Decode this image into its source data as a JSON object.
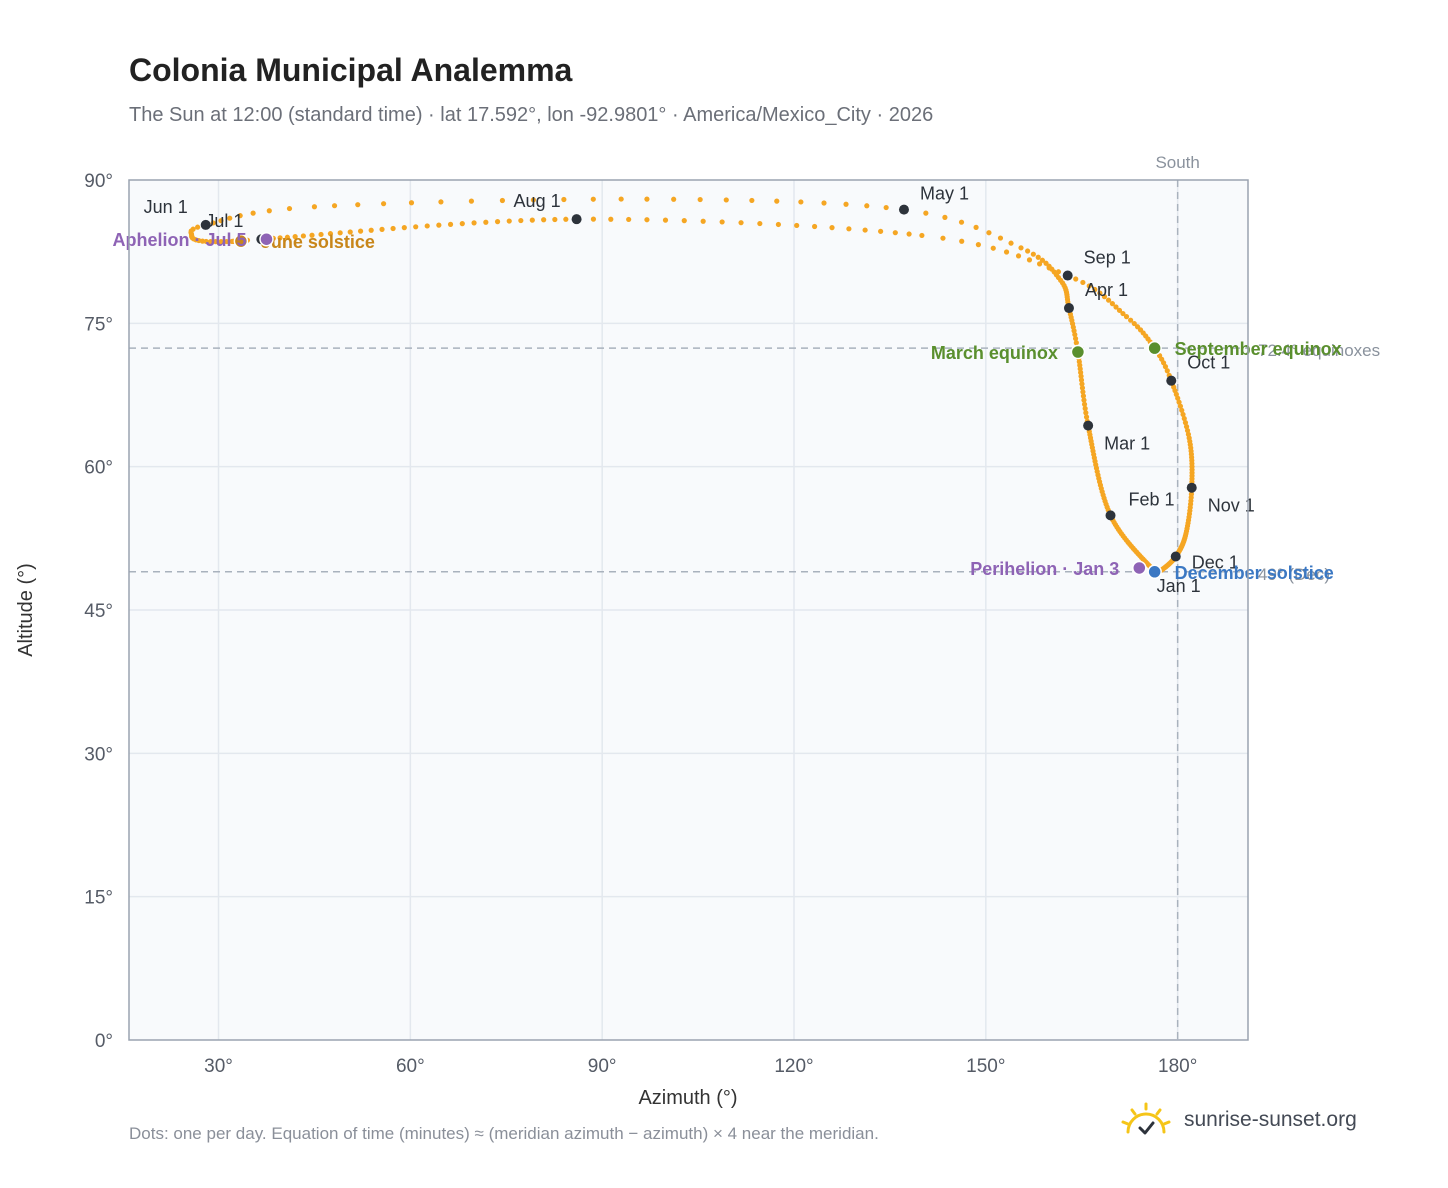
{
  "header": {
    "title": "Colonia Municipal Analemma",
    "subtitle": "The Sun at 12:00 (standard time) · lat 17.592°, lon -92.9801° · America/Mexico_City · 2026"
  },
  "footer": {
    "note": "Dots: one per day. Equation of time (minutes) ≈ (meridian azimuth − azimuth) × 4 near the meridian.",
    "brand": "sunrise-sunset.org"
  },
  "colors": {
    "path": "#f5a623",
    "month_dot": "#2d333b",
    "equinox": "#5a8f2e",
    "june_solstice": "#c8861a",
    "december_solstice": "#3b78c3",
    "apsis": "#8e63b5",
    "plot_bg": "#f8fafc",
    "grid": "#e3e8ee",
    "axis": "#9aa3b0",
    "brand_sun": "#f5c518"
  },
  "chart_data": {
    "type": "scatter",
    "xlabel": "Azimuth (°)",
    "ylabel": "Altitude (°)",
    "xlim": [
      16,
      191
    ],
    "ylim": [
      0,
      90
    ],
    "xticks": [
      30,
      60,
      90,
      120,
      150,
      180
    ],
    "xtick_labels": [
      "30°",
      "60°",
      "90°",
      "120°",
      "150°",
      "180°"
    ],
    "yticks": [
      0,
      15,
      30,
      45,
      60,
      75,
      90
    ],
    "ytick_labels": [
      "0°",
      "15°",
      "30°",
      "45°",
      "60°",
      "75°",
      "90°"
    ],
    "grid": true,
    "meridian": {
      "azimuth": 180,
      "label": "South"
    },
    "reference_lines": [
      {
        "altitude": 72.4,
        "label": "72.4° equinoxes"
      },
      {
        "altitude": 49,
        "label": "49° (Dec)"
      }
    ],
    "analemma_keypoints": [
      {
        "doy": 0,
        "az": 176.4,
        "alt": 49.0
      },
      {
        "doy": 31,
        "az": 169.5,
        "alt": 54.9
      },
      {
        "doy": 59,
        "az": 166.0,
        "alt": 64.3
      },
      {
        "doy": 78,
        "az": 164.4,
        "alt": 72.0
      },
      {
        "doy": 90,
        "az": 163.0,
        "alt": 76.6
      },
      {
        "doy": 101,
        "az": 161.7,
        "alt": 79.5
      },
      {
        "doy": 112,
        "az": 155.5,
        "alt": 82.9
      },
      {
        "doy": 120,
        "az": 137.2,
        "alt": 86.9
      },
      {
        "doy": 131,
        "az": 97.0,
        "alt": 88.0
      },
      {
        "doy": 143,
        "az": 45.0,
        "alt": 87.2
      },
      {
        "doy": 151,
        "az": 28.0,
        "alt": 85.3
      },
      {
        "doy": 157,
        "az": 25.8,
        "alt": 84.2
      },
      {
        "doy": 163,
        "az": 27.5,
        "alt": 83.6
      },
      {
        "doy": 171,
        "az": 33.5,
        "alt": 83.6
      },
      {
        "doy": 181,
        "az": 36.7,
        "alt": 83.8
      },
      {
        "doy": 212,
        "az": 86.0,
        "alt": 85.9
      },
      {
        "doy": 232,
        "az": 140.0,
        "alt": 84.2
      },
      {
        "doy": 243,
        "az": 162.8,
        "alt": 80.0
      },
      {
        "doy": 255,
        "az": 172.0,
        "alt": 75.7
      },
      {
        "doy": 265,
        "az": 176.4,
        "alt": 72.4
      },
      {
        "doy": 273,
        "az": 179.0,
        "alt": 69.0
      },
      {
        "doy": 288,
        "az": 181.8,
        "alt": 63.0
      },
      {
        "doy": 304,
        "az": 182.2,
        "alt": 57.8
      },
      {
        "doy": 319,
        "az": 181.3,
        "alt": 53.0
      },
      {
        "doy": 334,
        "az": 179.7,
        "alt": 50.6
      },
      {
        "doy": 350,
        "az": 177.5,
        "alt": 49.2
      },
      {
        "doy": 365,
        "az": 176.4,
        "alt": 49.0
      }
    ],
    "month_markers": [
      {
        "label": "Jan 1",
        "az": 176.4,
        "alt": 49.0
      },
      {
        "label": "Feb 1",
        "az": 169.5,
        "alt": 54.9
      },
      {
        "label": "Mar 1",
        "az": 166.0,
        "alt": 64.3
      },
      {
        "label": "Apr 1",
        "az": 163.0,
        "alt": 76.6
      },
      {
        "label": "May 1",
        "az": 137.2,
        "alt": 86.9
      },
      {
        "label": "Jun 1",
        "az": 28.0,
        "alt": 85.3
      },
      {
        "label": "Jul 1",
        "az": 36.7,
        "alt": 83.8
      },
      {
        "label": "Aug 1",
        "az": 86.0,
        "alt": 85.9
      },
      {
        "label": "Sep 1",
        "az": 162.8,
        "alt": 80.0
      },
      {
        "label": "Oct 1",
        "az": 179.0,
        "alt": 69.0
      },
      {
        "label": "Nov 1",
        "az": 182.2,
        "alt": 57.8
      },
      {
        "label": "Dec 1",
        "az": 179.7,
        "alt": 50.6
      }
    ],
    "events": [
      {
        "label": "March equinox",
        "az": 164.4,
        "alt": 72.0,
        "kind": "equinox",
        "side": "left"
      },
      {
        "label": "September equinox",
        "az": 176.4,
        "alt": 72.4,
        "kind": "equinox",
        "side": "right"
      },
      {
        "label": "June solstice",
        "az": 33.5,
        "alt": 83.6,
        "kind": "june_solstice",
        "side": "right"
      },
      {
        "label": "December solstice",
        "az": 176.4,
        "alt": 49.0,
        "kind": "december_solstice",
        "side": "right"
      },
      {
        "label": "Perihelion · Jan 3",
        "az": 174.0,
        "alt": 49.4,
        "kind": "apsis",
        "side": "left"
      },
      {
        "label": "Aphelion · Jul 5",
        "az": 37.5,
        "alt": 83.8,
        "kind": "apsis",
        "side": "left"
      }
    ]
  }
}
